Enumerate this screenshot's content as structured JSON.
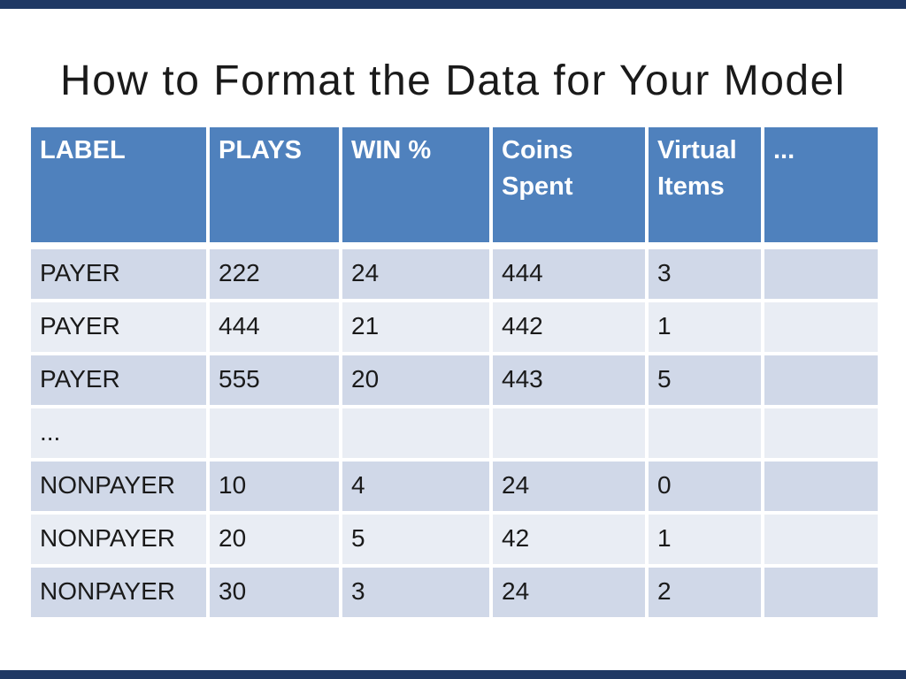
{
  "slide": {
    "title": "How to Format the Data for Your Model"
  },
  "colors": {
    "background": "#FFFFFF",
    "edge_bar": "#1F3864",
    "title_text": "#1A1A1A",
    "header_bg": "#4F81BD",
    "header_text": "#FFFFFF",
    "band_dark": "#D0D8E8",
    "band_light": "#E9EDF4",
    "body_text": "#1A1A1A"
  },
  "table": {
    "columns": [
      "LABEL",
      "PLAYS",
      "WIN %",
      "Coins Spent",
      "Virtual Items",
      "..."
    ],
    "rows": [
      [
        "PAYER",
        "222",
        "24",
        "444",
        "3",
        ""
      ],
      [
        "PAYER",
        "444",
        "21",
        "442",
        "1",
        ""
      ],
      [
        "PAYER",
        "555",
        "20",
        "443",
        "5",
        ""
      ],
      [
        "...",
        "",
        "",
        "",
        "",
        ""
      ],
      [
        "NONPAYER",
        "10",
        "4",
        "24",
        "0",
        ""
      ],
      [
        "NONPAYER",
        "20",
        "5",
        "42",
        "1",
        ""
      ],
      [
        "NONPAYER",
        "30",
        "3",
        "24",
        "2",
        ""
      ]
    ]
  }
}
